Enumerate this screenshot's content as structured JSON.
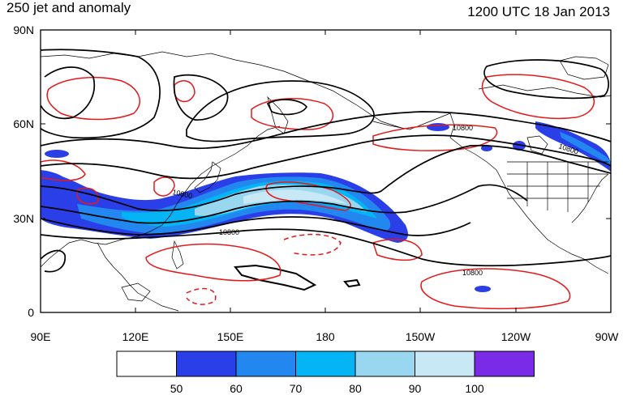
{
  "header": {
    "title_left": "250 jet and anomaly",
    "title_right": "1200 UTC 18 Jan 2013"
  },
  "map": {
    "lat_ticks": [
      "90N",
      "60N",
      "30N",
      "0"
    ],
    "lon_ticks": [
      "90E",
      "120E",
      "150E",
      "180",
      "150W",
      "120W",
      "90W"
    ],
    "contour_labels": [
      {
        "text": "10800",
        "pos": "north pacific near 170W"
      },
      {
        "text": "10800",
        "pos": "north america near 100W"
      },
      {
        "text": "10800",
        "pos": "near japan 140E"
      },
      {
        "text": "10800",
        "pos": "south of jet near 155E"
      },
      {
        "text": "10800",
        "pos": "hawaii 160W"
      }
    ]
  },
  "colorbar": {
    "labels": [
      "50",
      "60",
      "70",
      "80",
      "90",
      "100"
    ],
    "colors": [
      "#ffffff",
      "#2b3fe8",
      "#2288f0",
      "#05b4f5",
      "#99d6f0",
      "#c8e8f5",
      "#7a2be8"
    ]
  },
  "colors": {
    "jet_50": "#2b3fe8",
    "jet_60": "#2288f0",
    "jet_70": "#05b4f5",
    "jet_80": "#99d6f0",
    "jet_90": "#c8e8f5",
    "anomaly": "#e31a1c",
    "height_contour": "#000000",
    "coast": "#000000"
  }
}
